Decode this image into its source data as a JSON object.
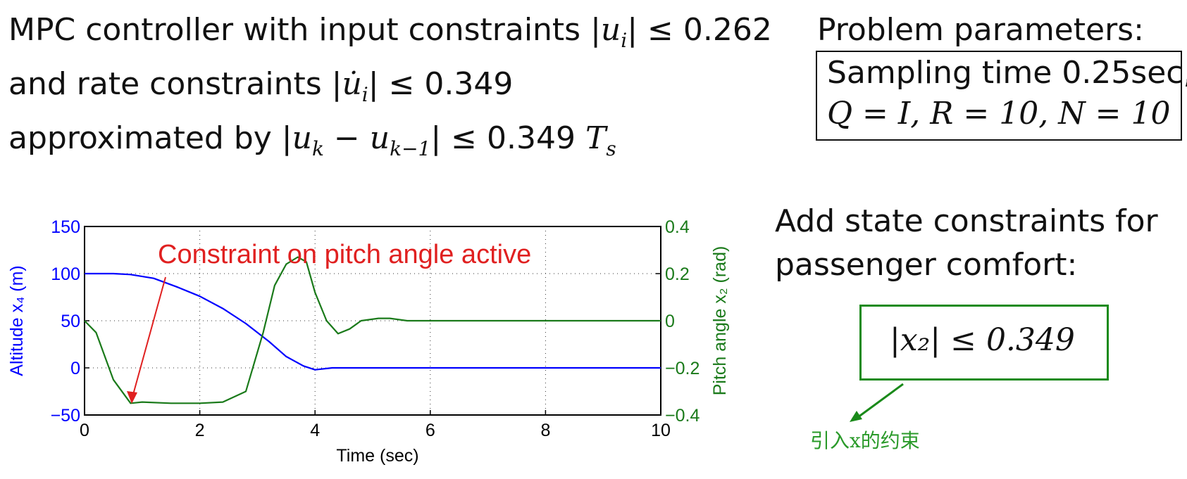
{
  "main_text": {
    "line1_prefix": "MPC controller with input constraints |",
    "line1_math": "u",
    "line1_sub": "i",
    "line1_suffix": "| ≤ 0.262",
    "line2_prefix": "and rate constraints |",
    "line2_math": "u̇",
    "line2_sub": "i",
    "line2_suffix": "| ≤ 0.349",
    "line3_prefix": "approximated by |",
    "line3_math_a": "u",
    "line3_sub_a": "k",
    "line3_mid": " − ",
    "line3_math_b": "u",
    "line3_sub_b": "k−1",
    "line3_suffix": "| ≤ 0.349 ",
    "line3_math_c": "T",
    "line3_sub_c": "s"
  },
  "params": {
    "heading": "Problem parameters:",
    "line1": "Sampling time 0.25sec,",
    "line2": "Q = I, R = 10, N = 10"
  },
  "state": {
    "line1": "Add state constraints for",
    "line2": "passenger comfort:",
    "constraint": "|x₂| ≤ 0.349"
  },
  "chinese_note": "引入x的约束",
  "chart_data": {
    "type": "line",
    "xlabel": "Time (sec)",
    "ylabel_left": "Altitude x₄ (m)",
    "ylabel_right": "Pitch angle x₂ (rad)",
    "xlim": [
      0,
      10
    ],
    "ylim_left": [
      -50,
      150
    ],
    "ylim_right": [
      -0.4,
      0.4
    ],
    "xticks": [
      "0",
      "2",
      "4",
      "6",
      "8",
      "10"
    ],
    "yticks_left": [
      "150",
      "100",
      "50",
      "0",
      "−50"
    ],
    "yticks_right": [
      "0.4",
      "0.2",
      "0",
      "−0.2",
      "−0.4"
    ],
    "annotation": "Constraint on pitch angle active",
    "grid": true,
    "colors": {
      "left": "#0000ff",
      "right": "#1a7a1a",
      "annotation": "#e02020"
    },
    "series": [
      {
        "axis": "left",
        "x": [
          0,
          0.5,
          0.8,
          1.2,
          1.6,
          2.0,
          2.4,
          2.8,
          3.2,
          3.5,
          3.8,
          4.0,
          4.3,
          4.5,
          10
        ],
        "values": [
          100,
          100,
          99,
          95,
          86,
          76,
          63,
          47,
          28,
          12,
          2,
          -2,
          0,
          0,
          0
        ]
      },
      {
        "axis": "right",
        "x": [
          0,
          0.2,
          0.5,
          0.8,
          1.0,
          1.5,
          2.0,
          2.4,
          2.8,
          3.1,
          3.3,
          3.5,
          3.7,
          3.85,
          4.0,
          4.2,
          4.4,
          4.6,
          4.8,
          5.1,
          5.3,
          5.6,
          10
        ],
        "values": [
          0,
          -0.05,
          -0.25,
          -0.35,
          -0.345,
          -0.35,
          -0.35,
          -0.345,
          -0.3,
          -0.05,
          0.15,
          0.24,
          0.27,
          0.25,
          0.12,
          0.0,
          -0.055,
          -0.035,
          0.0,
          0.01,
          0.01,
          0.0,
          0.0
        ]
      }
    ]
  }
}
